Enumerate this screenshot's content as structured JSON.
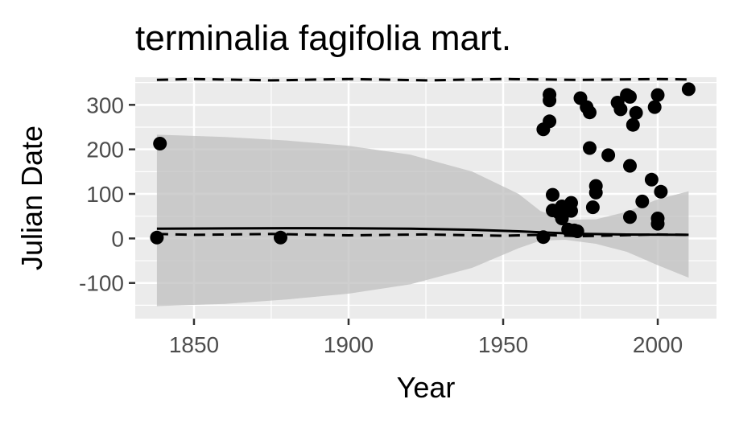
{
  "chart_data": {
    "type": "scatter",
    "title": "terminalia fagifolia mart.",
    "xlabel": "Year",
    "ylabel": "Julian Date",
    "xlim": [
      1831,
      2019
    ],
    "ylim": [
      -180,
      362
    ],
    "x_ticks": [
      1850,
      1900,
      1950,
      2000
    ],
    "y_ticks": [
      -100,
      0,
      100,
      200,
      300
    ],
    "x_tick_labels": [
      "1850",
      "1900",
      "1950",
      "2000"
    ],
    "y_tick_labels": [
      "-100",
      "0",
      "100",
      "200",
      "300"
    ],
    "grid": true,
    "background": "#ebebeb",
    "points": [
      [
        1838,
        2
      ],
      [
        1839,
        213
      ],
      [
        1878,
        2
      ],
      [
        1963,
        3
      ],
      [
        1963,
        245
      ],
      [
        1965,
        263
      ],
      [
        1965,
        310
      ],
      [
        1965,
        323
      ],
      [
        1966,
        98
      ],
      [
        1966,
        63
      ],
      [
        1968,
        58
      ],
      [
        1969,
        45
      ],
      [
        1969,
        72
      ],
      [
        1970,
        60
      ],
      [
        1970,
        67
      ],
      [
        1971,
        20
      ],
      [
        1972,
        62
      ],
      [
        1972,
        80
      ],
      [
        1973,
        18
      ],
      [
        1974,
        16
      ],
      [
        1975,
        315
      ],
      [
        1977,
        295
      ],
      [
        1978,
        203
      ],
      [
        1978,
        283
      ],
      [
        1979,
        70
      ],
      [
        1980,
        103
      ],
      [
        1980,
        118
      ],
      [
        1984,
        187
      ],
      [
        1987,
        305
      ],
      [
        1988,
        290
      ],
      [
        1990,
        322
      ],
      [
        1991,
        318
      ],
      [
        1991,
        163
      ],
      [
        1991,
        48
      ],
      [
        1992,
        255
      ],
      [
        1993,
        282
      ],
      [
        1995,
        83
      ],
      [
        1998,
        132
      ],
      [
        1999,
        295
      ],
      [
        2000,
        322
      ],
      [
        2000,
        45
      ],
      [
        2000,
        33
      ],
      [
        2001,
        105
      ],
      [
        2010,
        335
      ]
    ],
    "trend": [
      [
        1838,
        22
      ],
      [
        1860,
        22.6
      ],
      [
        1880,
        23
      ],
      [
        1900,
        22.8
      ],
      [
        1920,
        21.8
      ],
      [
        1940,
        19.5
      ],
      [
        1955,
        16
      ],
      [
        1965,
        13
      ],
      [
        1975,
        10.5
      ],
      [
        1990,
        8.8
      ],
      [
        2010,
        8
      ]
    ],
    "ribbon_upper": [
      [
        1838,
        233
      ],
      [
        1860,
        228
      ],
      [
        1880,
        220
      ],
      [
        1900,
        208
      ],
      [
        1920,
        188
      ],
      [
        1940,
        150
      ],
      [
        1955,
        100
      ],
      [
        1962,
        62
      ],
      [
        1970,
        42
      ],
      [
        1980,
        43
      ],
      [
        1990,
        60
      ],
      [
        2000,
        88
      ],
      [
        2010,
        106
      ]
    ],
    "ribbon_lower": [
      [
        1838,
        -152
      ],
      [
        1860,
        -147
      ],
      [
        1880,
        -137
      ],
      [
        1900,
        -124
      ],
      [
        1920,
        -103
      ],
      [
        1940,
        -66
      ],
      [
        1955,
        -22
      ],
      [
        1962,
        -5
      ],
      [
        1970,
        -3
      ],
      [
        1980,
        -12
      ],
      [
        1990,
        -30
      ],
      [
        2000,
        -60
      ],
      [
        2010,
        -88
      ]
    ],
    "dashed_upper": [
      [
        1838,
        356
      ],
      [
        1850,
        358
      ],
      [
        1875,
        355
      ],
      [
        1900,
        358
      ],
      [
        1925,
        355
      ],
      [
        1950,
        358
      ],
      [
        1975,
        356
      ],
      [
        2000,
        358
      ],
      [
        2010,
        357
      ]
    ],
    "dashed_lower": [
      [
        1838,
        10
      ],
      [
        1850,
        8
      ],
      [
        1875,
        10
      ],
      [
        1900,
        7
      ],
      [
        1925,
        9
      ],
      [
        1950,
        6
      ],
      [
        1962,
        8
      ],
      [
        1975,
        5
      ],
      [
        2000,
        9
      ],
      [
        2010,
        8
      ]
    ]
  }
}
